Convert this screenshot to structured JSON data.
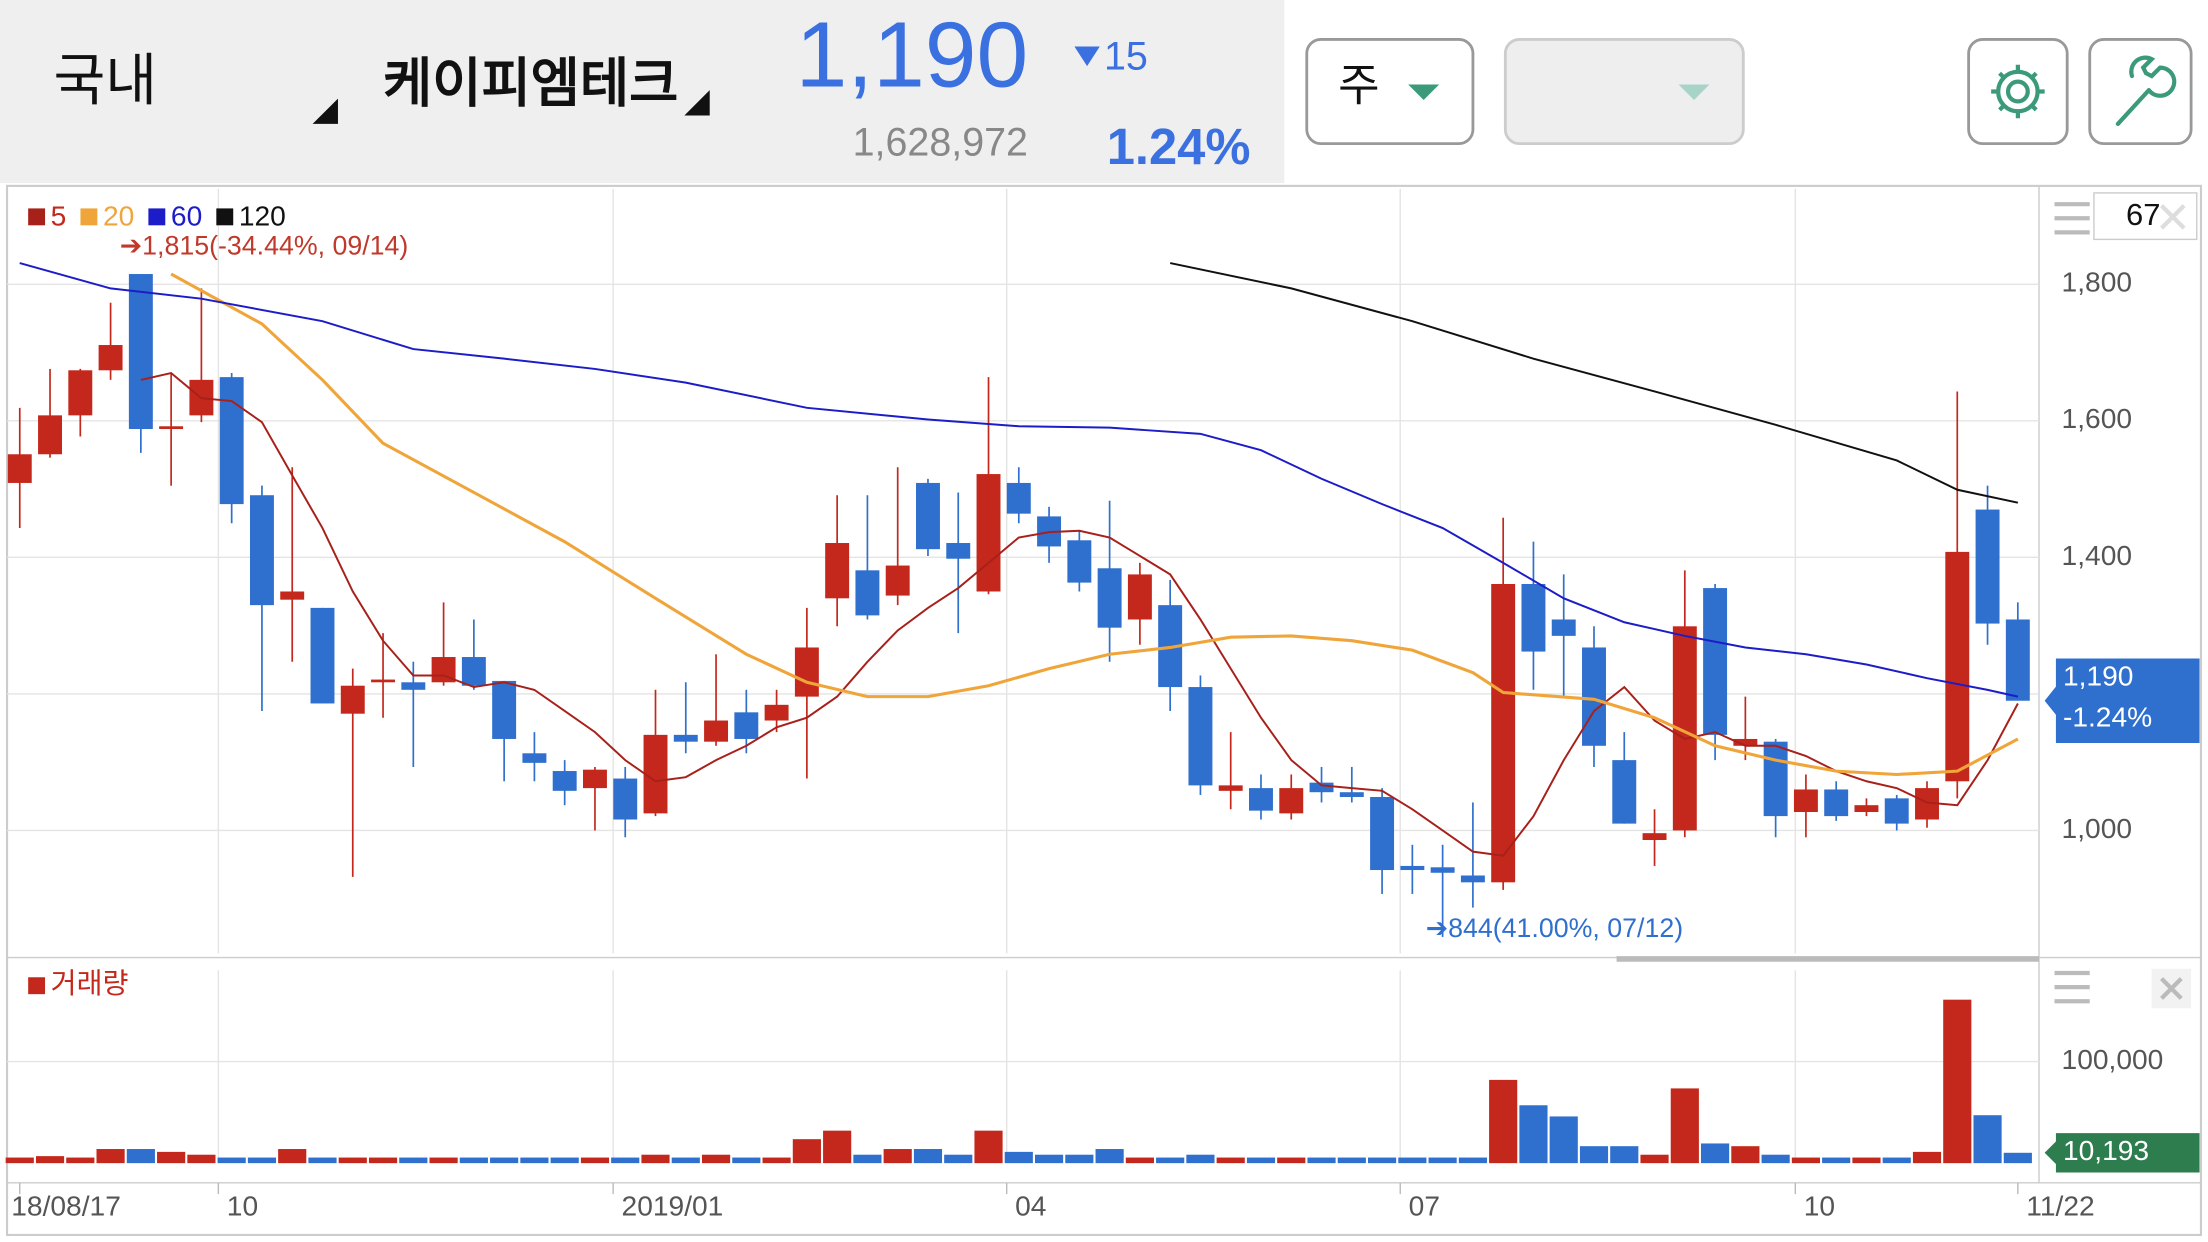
{
  "header": {
    "market": "국내",
    "stock": "케이피엠테크",
    "price": "1,190",
    "change": "15",
    "volume": "1,628,972",
    "change_rate": "1.24%",
    "period": "주"
  },
  "chart_data": {
    "type": "candlestick",
    "open": [
      1509,
      1551,
      1608,
      1674,
      1815,
      1588,
      1608,
      1664,
      1491,
      1338,
      1326,
      1171,
      1217,
      1217,
      1217,
      1254,
      1219,
      1113,
      1087,
      1062,
      1076,
      1025,
      1140,
      1130,
      1173,
      1161,
      1196,
      1340,
      1381,
      1344,
      1509,
      1421,
      1350,
      1509,
      1460,
      1425,
      1384,
      1309,
      1330,
      1210,
      1058,
      1062,
      1025,
      1070,
      1056,
      1049,
      948,
      946,
      934,
      924,
      1361,
      1309,
      1268,
      1103,
      986,
      1000,
      1355,
      1124,
      1130,
      1027,
      1060,
      1027,
      1047,
      1016,
      1072,
      1470,
      1309
    ],
    "close": [
      1551,
      1608,
      1674,
      1711,
      1588,
      1592,
      1660,
      1478,
      1330,
      1350,
      1186,
      1212,
      1221,
      1206,
      1254,
      1212,
      1134,
      1099,
      1058,
      1089,
      1016,
      1140,
      1130,
      1161,
      1134,
      1184,
      1268,
      1421,
      1315,
      1388,
      1412,
      1398,
      1522,
      1464,
      1416,
      1363,
      1297,
      1375,
      1210,
      1066,
      1066,
      1029,
      1062,
      1056,
      1049,
      942,
      942,
      938,
      924,
      1361,
      1262,
      1285,
      1124,
      1010,
      996,
      1299,
      1140,
      1134,
      1021,
      1060,
      1021,
      1037,
      1010,
      1062,
      1408,
      1303,
      1190
    ],
    "high": [
      1619,
      1676,
      1676,
      1773,
      1815,
      1670,
      1794,
      1670,
      1505,
      1532,
      1326,
      1237,
      1289,
      1247,
      1334,
      1309,
      1219,
      1144,
      1103,
      1093,
      1093,
      1206,
      1217,
      1258,
      1206,
      1206,
      1326,
      1491,
      1491,
      1532,
      1515,
      1495,
      1664,
      1532,
      1474,
      1440,
      1483,
      1392,
      1367,
      1227,
      1144,
      1082,
      1082,
      1093,
      1093,
      1062,
      979,
      979,
      1041,
      1458,
      1423,
      1375,
      1299,
      1144,
      1031,
      1381,
      1361,
      1196,
      1134,
      1082,
      1072,
      1047,
      1052,
      1072,
      1643,
      1505,
      1334
    ],
    "low": [
      1443,
      1546,
      1577,
      1660,
      1553,
      1505,
      1598,
      1450,
      1175,
      1247,
      1186,
      932,
      1165,
      1093,
      1212,
      1206,
      1072,
      1072,
      1037,
      1000,
      990,
      1021,
      1113,
      1124,
      1113,
      1144,
      1076,
      1299,
      1309,
      1330,
      1402,
      1289,
      1346,
      1450,
      1392,
      1350,
      1247,
      1272,
      1175,
      1052,
      1031,
      1016,
      1016,
      1041,
      1041,
      907,
      907,
      844,
      887,
      913,
      1206,
      1196,
      1093,
      1010,
      948,
      990,
      1103,
      1103,
      990,
      990,
      1014,
      1021,
      1000,
      1004,
      1047,
      1272,
      1196
    ],
    "up_color": "#c4281c",
    "down_color": "#2f6fcd",
    "xlim": [
      -0.42,
      66.7
    ],
    "xticks": [
      {
        "value": 0,
        "label": "18/08/17"
      },
      {
        "value": 6.56,
        "label": "10"
      },
      {
        "value": 19.6,
        "label": "2019/01"
      },
      {
        "value": 32.6,
        "label": "04"
      },
      {
        "value": 45.6,
        "label": "07"
      },
      {
        "value": 58.65,
        "label": "10"
      },
      {
        "value": 66,
        "label": "11/22"
      }
    ],
    "ylim": [
      820,
      1940
    ],
    "yticks": [
      {
        "value": 1000,
        "label": "1,000"
      },
      {
        "value": 1200,
        "label": "1,200"
      },
      {
        "value": 1400,
        "label": "1,400"
      },
      {
        "value": 1600,
        "label": "1,600"
      },
      {
        "value": 1800,
        "label": "1,800"
      }
    ],
    "grid": true,
    "series": [
      {
        "name": "5",
        "color": "#a8201a",
        "x": [
          4,
          5,
          6,
          7,
          8,
          9,
          10,
          11,
          12,
          13,
          14,
          15,
          16,
          17,
          18,
          19,
          20,
          21,
          22,
          23,
          24,
          25,
          26,
          27,
          28,
          29,
          30,
          31,
          32,
          33,
          34,
          35,
          36,
          37,
          38,
          39,
          40,
          41,
          42,
          43,
          44,
          45,
          46,
          47,
          48,
          49,
          50,
          51,
          52,
          53,
          54,
          55,
          56,
          57,
          58,
          59,
          60,
          61,
          62,
          63,
          64,
          65,
          66
        ],
        "values": [
          1660,
          1670,
          1633,
          1629,
          1598,
          1520,
          1443,
          1350,
          1278,
          1227,
          1227,
          1210,
          1217,
          1206,
          1175,
          1144,
          1103,
          1072,
          1078,
          1103,
          1124,
          1151,
          1165,
          1196,
          1247,
          1293,
          1326,
          1355,
          1392,
          1429,
          1437,
          1439,
          1429,
          1402,
          1375,
          1309,
          1237,
          1165,
          1103,
          1066,
          1062,
          1058,
          1031,
          1000,
          969,
          963,
          1021,
          1103,
          1175,
          1210,
          1161,
          1134,
          1144,
          1124,
          1124,
          1109,
          1087,
          1072,
          1062,
          1041,
          1037,
          1103,
          1186
        ]
      },
      {
        "name": "20",
        "color": "#f0a53a",
        "x": [
          5,
          8,
          10,
          12,
          15,
          18,
          21,
          24,
          26,
          28,
          30,
          32,
          34,
          36,
          38,
          40,
          42,
          44,
          46,
          48,
          49,
          52,
          54,
          56,
          58,
          60,
          62,
          64,
          66
        ],
        "values": [
          1815,
          1742,
          1660,
          1567,
          1495,
          1423,
          1340,
          1258,
          1217,
          1196,
          1196,
          1212,
          1237,
          1258,
          1268,
          1283,
          1285,
          1278,
          1264,
          1231,
          1202,
          1192,
          1165,
          1124,
          1103,
          1087,
          1082,
          1087,
          1134
        ]
      },
      {
        "name": "60",
        "color": "#1c1cc8",
        "x": [
          0,
          3,
          6,
          10,
          13,
          16,
          19,
          22,
          26,
          30,
          33,
          36,
          39,
          41,
          43,
          45,
          47,
          49,
          51,
          53,
          55,
          57,
          59,
          61,
          63,
          65,
          66
        ],
        "values": [
          1831,
          1794,
          1779,
          1746,
          1705,
          1691,
          1676,
          1656,
          1619,
          1602,
          1592,
          1590,
          1581,
          1557,
          1515,
          1478,
          1443,
          1392,
          1340,
          1305,
          1285,
          1268,
          1258,
          1243,
          1223,
          1206,
          1196
        ]
      },
      {
        "name": "120",
        "color": "#111111",
        "x": [
          38,
          42,
          46,
          50,
          54,
          58,
          62,
          64,
          66
        ],
        "values": [
          1831,
          1794,
          1746,
          1691,
          1643,
          1594,
          1542,
          1499,
          1480
        ]
      }
    ],
    "annotations": [
      {
        "text": "➔1,815(-34.44%, 09/14)",
        "color": "#c0392b"
      },
      {
        "text": "➔844(41.00%, 07/12)",
        "color": "#2f6fcd"
      }
    ],
    "last_price_label": "1,190",
    "last_change_label": "-1.24%",
    "last_color": "#2f6fcd",
    "visible_count": "67",
    "volume": {
      "name": "거래량",
      "values": [
        5500,
        6900,
        5500,
        13900,
        13900,
        11100,
        8300,
        5500,
        5500,
        13900,
        5500,
        5500,
        5500,
        5500,
        5500,
        5500,
        5500,
        5500,
        5500,
        5500,
        5500,
        8300,
        5500,
        8300,
        5500,
        5500,
        23600,
        32000,
        8300,
        13900,
        13900,
        8300,
        32000,
        11100,
        8300,
        8300,
        13900,
        5500,
        5500,
        8300,
        5500,
        5500,
        5500,
        5500,
        5500,
        5500,
        5500,
        5500,
        5500,
        82000,
        57000,
        46000,
        16700,
        16700,
        8300,
        73600,
        19400,
        16700,
        8300,
        5500,
        5500,
        5500,
        5500,
        11100,
        161000,
        47200,
        10193
      ],
      "ylim": [
        0,
        190000
      ],
      "yticks": [
        {
          "value": 100000,
          "label": "100,000"
        }
      ],
      "last_label": "10,193",
      "last_color": "#2e7d4f"
    }
  }
}
